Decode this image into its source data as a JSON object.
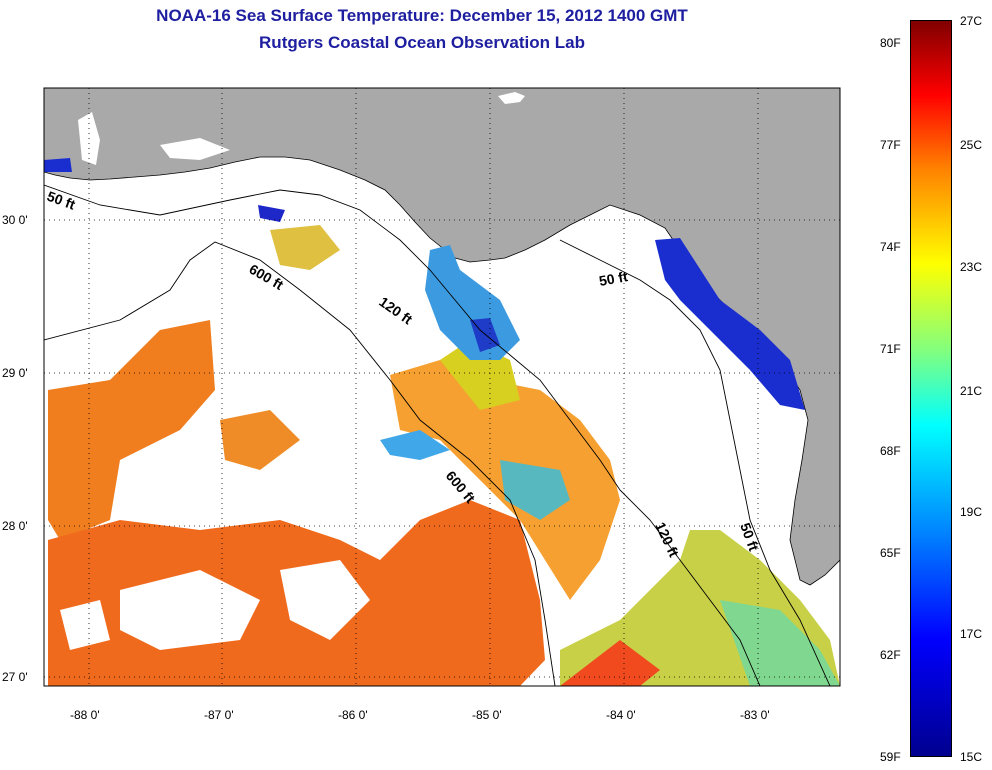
{
  "title": {
    "line1": "NOAA-16 Sea Surface Temperature:  December 15, 2012 1400 GMT",
    "line2": "Rutgers Coastal Ocean Observation Lab"
  },
  "axes": {
    "lat_labels": [
      "30 0'",
      "29 0'",
      "28 0'",
      "27 0'"
    ],
    "lon_labels": [
      "-88 0'",
      "-87 0'",
      "-86 0'",
      "-85 0'",
      "-84 0'",
      "-83 0'"
    ]
  },
  "depth_labels": [
    "50 ft",
    "600 ft",
    "120 ft",
    "50 ft",
    "600 ft",
    "120 ft",
    "50 ft"
  ],
  "colorbar": {
    "fahrenheit": [
      "80F",
      "77F",
      "74F",
      "71F",
      "68F",
      "65F",
      "62F",
      "59F"
    ],
    "celsius": [
      "27C",
      "25C",
      "23C",
      "21C",
      "19C",
      "17C",
      "15C"
    ]
  },
  "colors": {
    "land": "#a9a9a9",
    "ocean_nodata": "#ffffff",
    "title": "#1e1ea0"
  }
}
